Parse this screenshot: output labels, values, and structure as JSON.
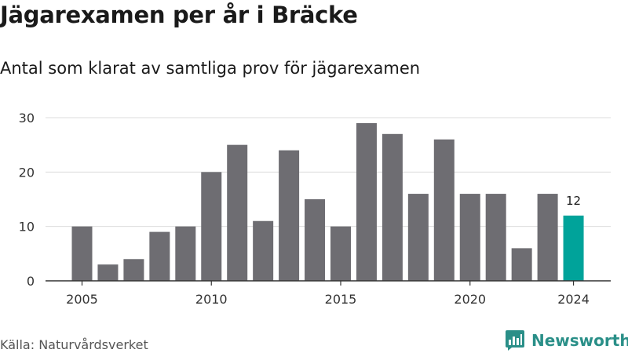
{
  "title": "Jägarexamen per år i Bräcke",
  "subtitle": "Antal som klarat av samtliga prov för jägarexamen",
  "source": "Källa: Naturvårdsverket",
  "brand": "Newsworthy",
  "colors": {
    "bar": "#6e6d72",
    "highlight": "#00a39a",
    "grid": "#dcdcdc",
    "axis": "#333333",
    "brand": "#2a8f88"
  },
  "icons": {
    "brand_logo": "bar-chart-speech-bubble-icon"
  },
  "chart_data": {
    "type": "bar",
    "x": [
      2005,
      2006,
      2007,
      2008,
      2009,
      2010,
      2011,
      2012,
      2013,
      2014,
      2015,
      2016,
      2017,
      2018,
      2019,
      2020,
      2021,
      2022,
      2023,
      2024
    ],
    "values": [
      10,
      3,
      4,
      9,
      10,
      20,
      25,
      11,
      24,
      15,
      10,
      29,
      27,
      16,
      26,
      16,
      16,
      6,
      16,
      12
    ],
    "x_ticks": [
      "2005",
      "2010",
      "2015",
      "2020",
      "2024"
    ],
    "y_ticks": [
      "0",
      "10",
      "20",
      "30"
    ],
    "ylim": [
      0,
      30
    ],
    "grid": true,
    "highlight": {
      "x": 2024,
      "label": "12"
    },
    "xlabel": "",
    "ylabel": ""
  }
}
